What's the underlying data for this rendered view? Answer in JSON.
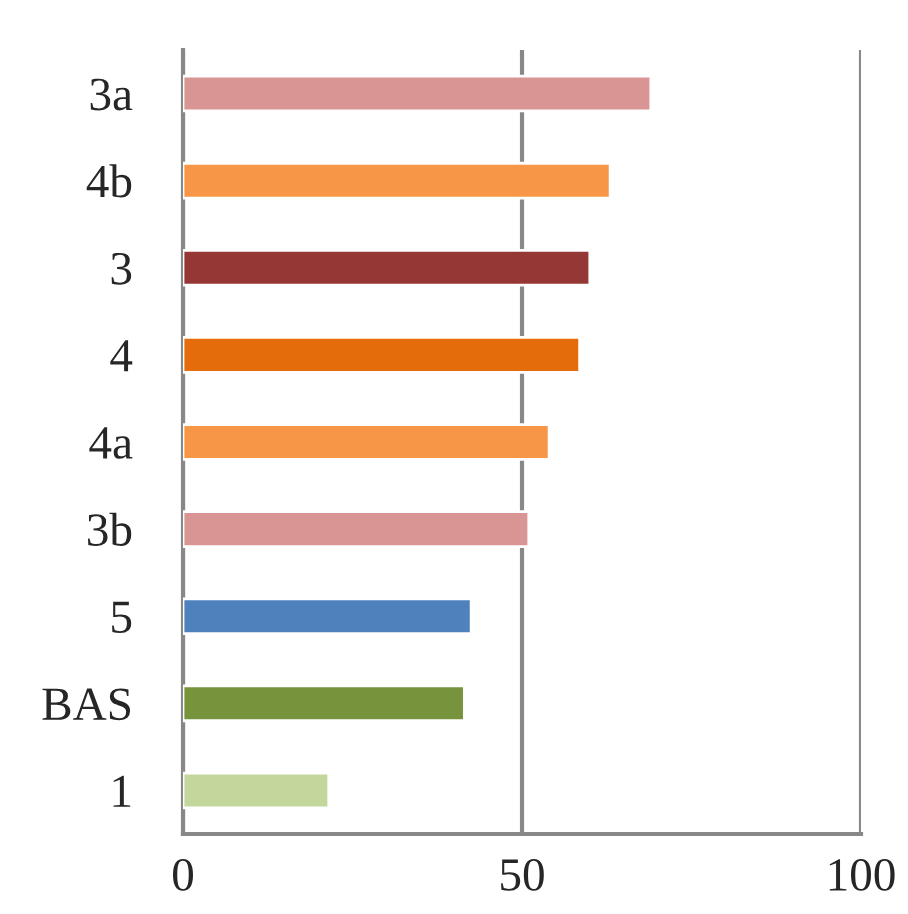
{
  "chart_data": {
    "type": "bar",
    "orientation": "horizontal",
    "categories": [
      "3a",
      "4b",
      "3",
      "4",
      "4a",
      "3b",
      "5",
      "BAS",
      "1"
    ],
    "values": [
      69,
      63,
      60,
      58.5,
      54,
      51,
      42.5,
      41.5,
      21.5
    ],
    "colors": [
      "#d99594",
      "#f79646",
      "#953735",
      "#e46c0a",
      "#f79646",
      "#d99594",
      "#4f81bd",
      "#77933c",
      "#c3d69b"
    ],
    "xlim": [
      0,
      100
    ],
    "xticks": [
      0,
      50,
      100
    ],
    "grid": "x"
  }
}
